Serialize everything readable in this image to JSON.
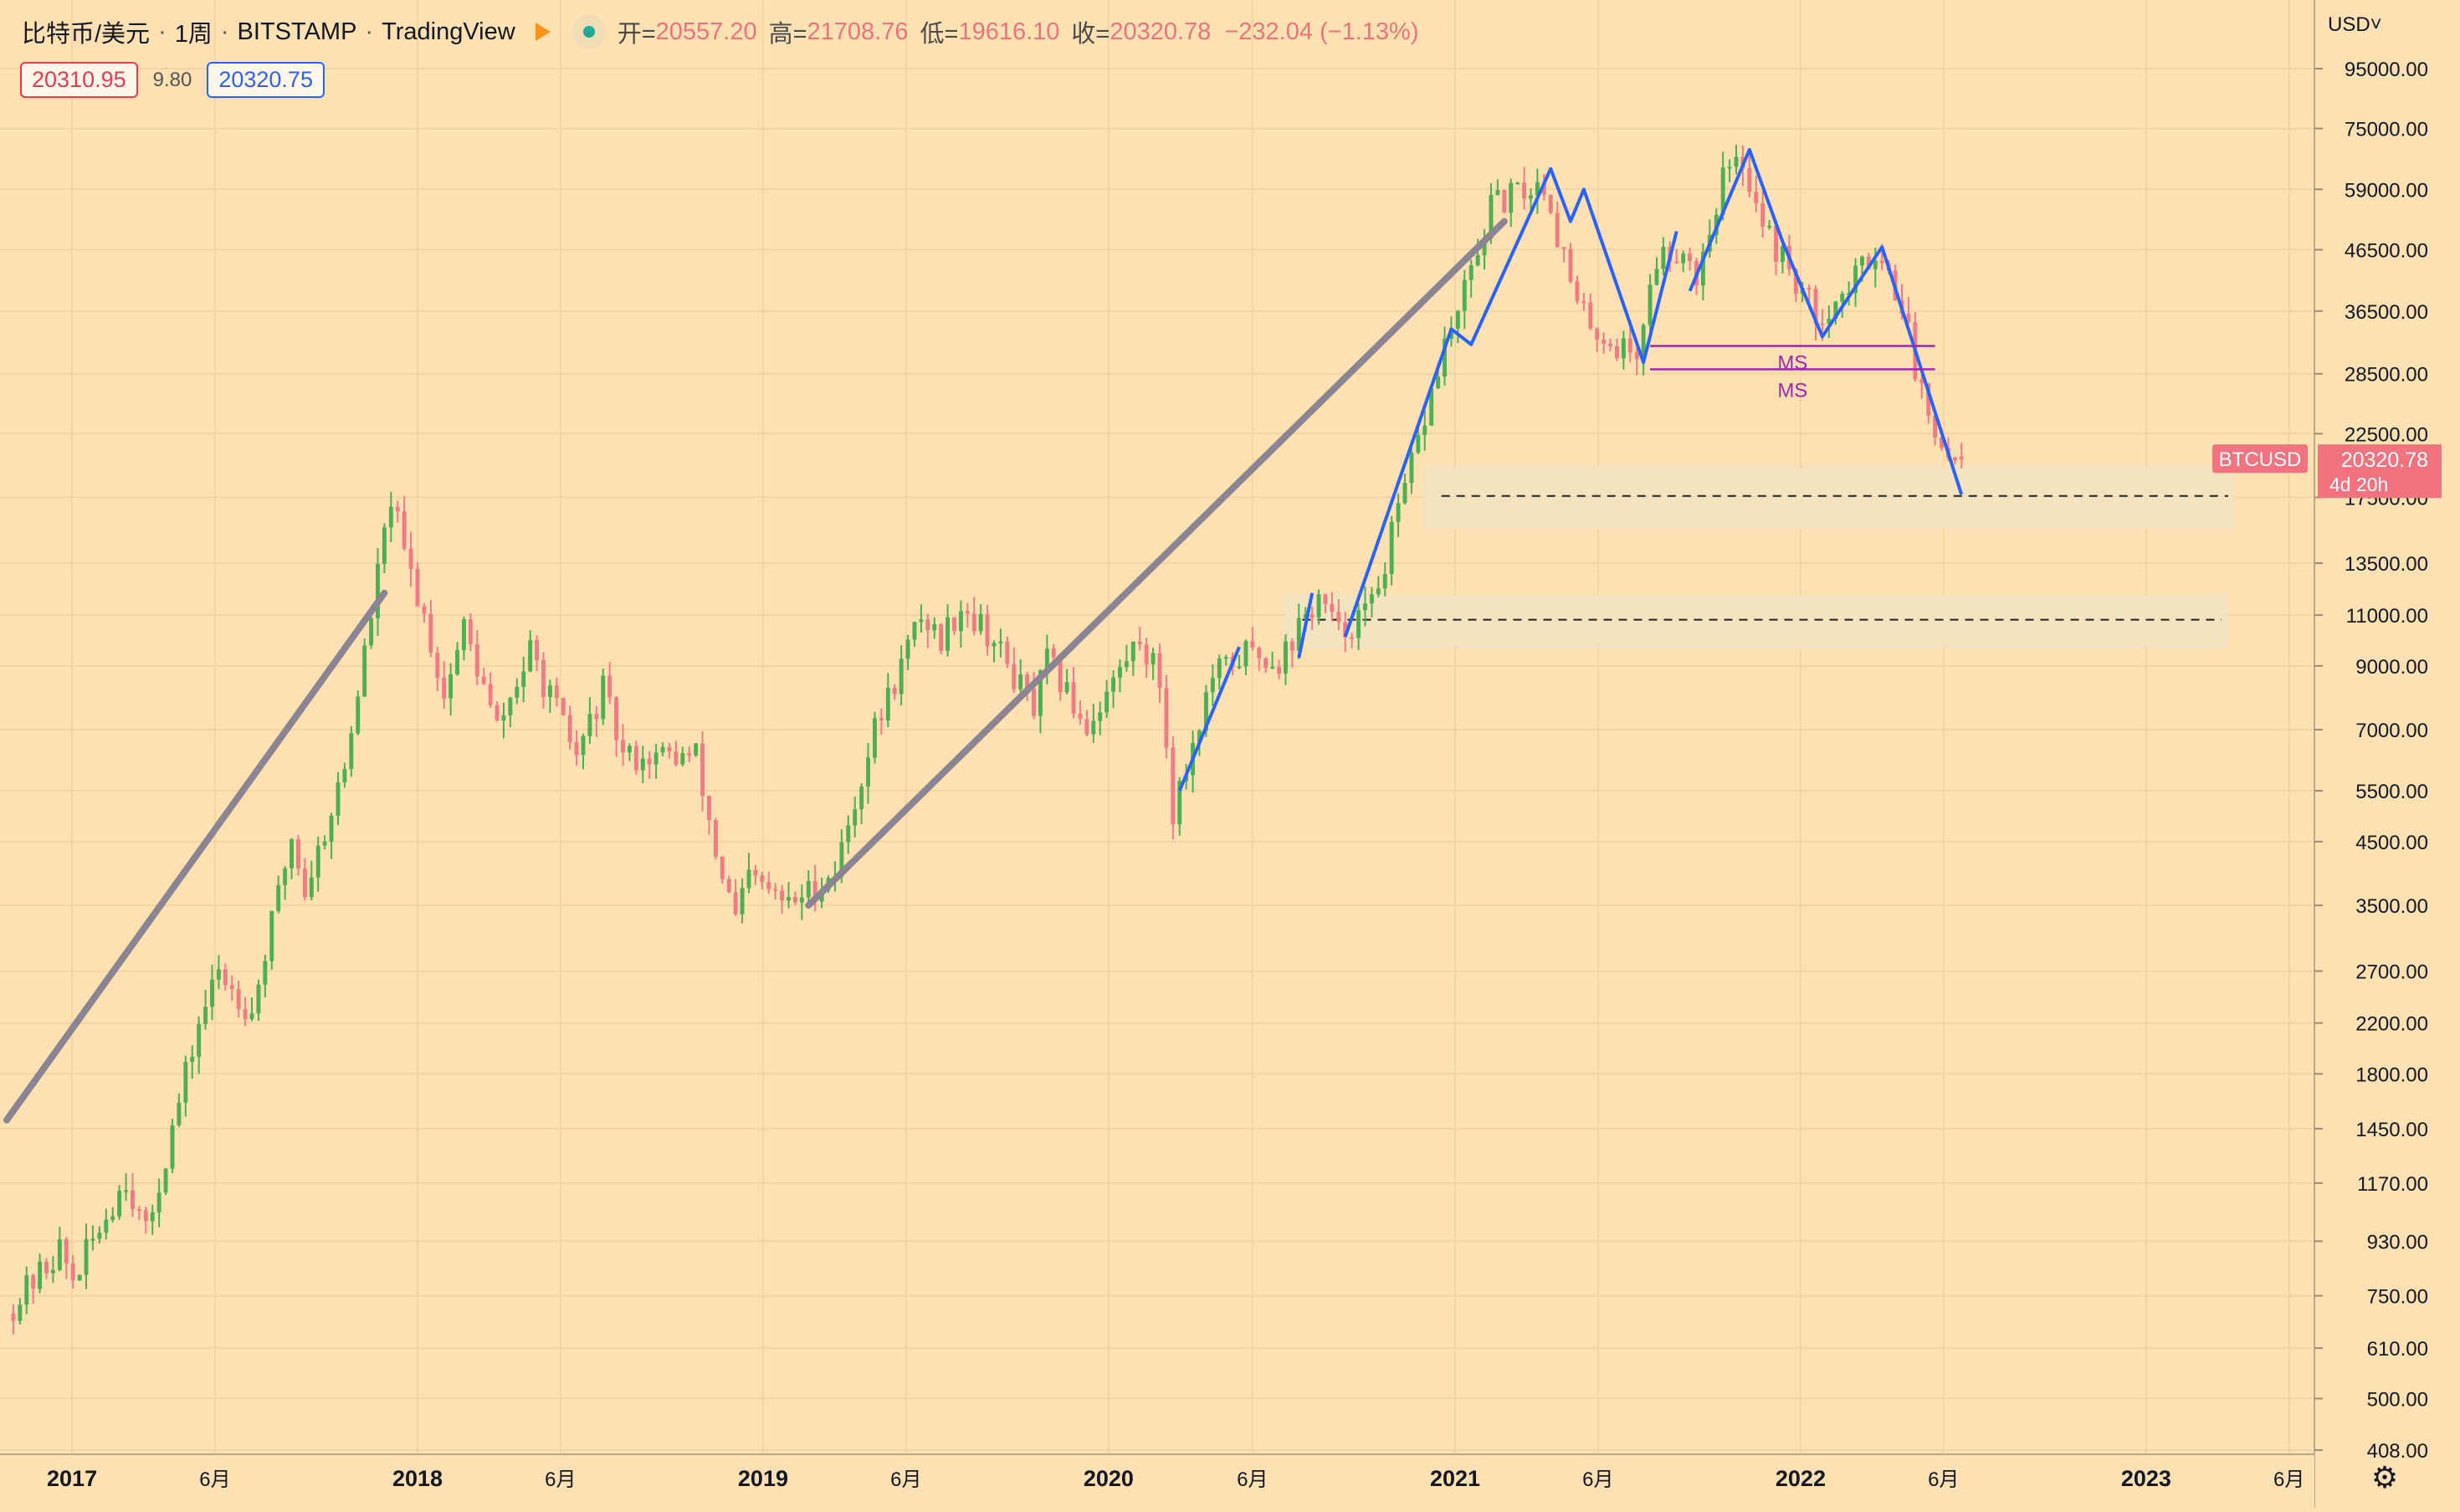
{
  "legend": {
    "symbol": "比特币/美元",
    "interval": "1周",
    "exchange": "BITSTAMP",
    "provider": "TradingView",
    "open_label": "开=",
    "open": "20557.20",
    "high_label": "高=",
    "high": "21708.76",
    "low_label": "低=",
    "low": "19616.10",
    "close_label": "收=",
    "close": "20320.78",
    "change": "−232.04 (−1.13%)",
    "flag_icon": "orange-flag-icon",
    "live_icon": "market-open-dot-icon"
  },
  "quote": {
    "sell": "20310.95",
    "spread": "9.80",
    "buy": "20320.75"
  },
  "axis": {
    "currency": "USD˅",
    "settings_icon": "gear-icon"
  },
  "price_tag": {
    "ticker": "BTCUSD",
    "price": "20320.78",
    "countdown": "4d 20h"
  },
  "colors": {
    "background": "#fde1b2",
    "up": "#4caf50",
    "down": "#ef7b84",
    "trendline": "#8a8493",
    "wave": "#2962ff",
    "ms": "#9c27b0",
    "zone": "#f2e4c0",
    "tag": "#f0737f"
  },
  "chart_data": {
    "type": "candlestick",
    "scale": "log",
    "timeframe": "weekly",
    "ylim": [
      408,
      120000
    ],
    "y_ticks": [
      95000,
      75000,
      59000,
      46500,
      36500,
      28500,
      22500,
      17500,
      13500,
      11000,
      9000,
      7000,
      5500,
      4500,
      3500,
      2700,
      2200,
      1800,
      1450,
      1170,
      930,
      750,
      610,
      500,
      408
    ],
    "y_tick_labels": [
      "95000.00",
      "75000.00",
      "59000.00",
      "46500.00",
      "36500.00",
      "28500.00",
      "22500.00",
      "17500.00",
      "13500.00",
      "11000.00",
      "9000.00",
      "7000.00",
      "5500.00",
      "4500.00",
      "3500.00",
      "2700.00",
      "2200.00",
      "1800.00",
      "1450.00",
      "1170.00",
      "930.00",
      "750.00",
      "610.00",
      "500.00",
      "408.00"
    ],
    "xlim": [
      "2016-10-24",
      "2023-06-26"
    ],
    "x_ticks": [
      {
        "date": "2017-01-01",
        "label": "2017",
        "bold": true
      },
      {
        "date": "2017-06-01",
        "label": "6月",
        "bold": false
      },
      {
        "date": "2018-01-01",
        "label": "2018",
        "bold": true
      },
      {
        "date": "2018-06-01",
        "label": "6月",
        "bold": false
      },
      {
        "date": "2019-01-01",
        "label": "2019",
        "bold": true
      },
      {
        "date": "2019-06-01",
        "label": "6月",
        "bold": false
      },
      {
        "date": "2020-01-01",
        "label": "2020",
        "bold": true
      },
      {
        "date": "2020-06-01",
        "label": "6月",
        "bold": false
      },
      {
        "date": "2021-01-01",
        "label": "2021",
        "bold": true
      },
      {
        "date": "2021-06-01",
        "label": "6月",
        "bold": false
      },
      {
        "date": "2022-01-01",
        "label": "2022",
        "bold": true
      },
      {
        "date": "2022-06-01",
        "label": "6月",
        "bold": false
      },
      {
        "date": "2023-01-01",
        "label": "2023",
        "bold": true
      },
      {
        "date": "2023-06-01",
        "label": "6月",
        "bold": false
      }
    ],
    "anchors": [
      [
        "2016-10-31",
        700
      ],
      [
        "2016-12-26",
        900
      ],
      [
        "2017-01-09",
        800
      ],
      [
        "2017-03-06",
        1200
      ],
      [
        "2017-03-27",
        950
      ],
      [
        "2017-05-22",
        2200
      ],
      [
        "2017-06-12",
        2700
      ],
      [
        "2017-07-17",
        2300
      ],
      [
        "2017-08-28",
        4600
      ],
      [
        "2017-09-11",
        3700
      ],
      [
        "2017-10-23",
        6000
      ],
      [
        "2017-12-11",
        17500
      ],
      [
        "2017-12-25",
        14000
      ],
      [
        "2018-01-15",
        11000
      ],
      [
        "2018-02-05",
        8000
      ],
      [
        "2018-02-26",
        10500
      ],
      [
        "2018-04-02",
        7000
      ],
      [
        "2018-05-07",
        9500
      ],
      [
        "2018-06-25",
        6300
      ],
      [
        "2018-07-23",
        8200
      ],
      [
        "2018-08-13",
        6300
      ],
      [
        "2018-10-29",
        6300
      ],
      [
        "2018-11-19",
        4300
      ],
      [
        "2018-12-10",
        3300
      ],
      [
        "2018-12-24",
        3900
      ],
      [
        "2019-02-04",
        3500
      ],
      [
        "2019-03-25",
        4000
      ],
      [
        "2019-05-06",
        7000
      ],
      [
        "2019-06-24",
        11000
      ],
      [
        "2019-07-15",
        10000
      ],
      [
        "2019-08-05",
        11500
      ],
      [
        "2019-09-02",
        10300
      ],
      [
        "2019-10-21",
        7600
      ],
      [
        "2019-11-04",
        9200
      ],
      [
        "2019-12-16",
        7100
      ],
      [
        "2020-02-10",
        10100
      ],
      [
        "2020-03-02",
        8500
      ],
      [
        "2020-03-16",
        5100
      ],
      [
        "2020-04-27",
        8600
      ],
      [
        "2020-06-01",
        9500
      ],
      [
        "2020-07-06",
        9200
      ],
      [
        "2020-08-17",
        11800
      ],
      [
        "2020-09-07",
        10200
      ],
      [
        "2020-10-12",
        11400
      ],
      [
        "2020-11-16",
        18000
      ],
      [
        "2020-12-28",
        32000
      ],
      [
        "2021-01-11",
        36000
      ],
      [
        "2021-02-15",
        55000
      ],
      [
        "2021-03-15",
        58000
      ],
      [
        "2021-04-12",
        60500
      ],
      [
        "2021-05-17",
        37000
      ],
      [
        "2021-06-21",
        32000
      ],
      [
        "2021-07-19",
        31000
      ],
      [
        "2021-08-09",
        45000
      ],
      [
        "2021-09-06",
        47000
      ],
      [
        "2021-09-20",
        42000
      ],
      [
        "2021-10-18",
        62000
      ],
      [
        "2021-11-08",
        66000
      ],
      [
        "2021-12-06",
        49000
      ],
      [
        "2022-01-24",
        36000
      ],
      [
        "2022-02-21",
        38500
      ],
      [
        "2022-03-28",
        47000
      ],
      [
        "2022-04-25",
        38000
      ],
      [
        "2022-05-09",
        29000
      ],
      [
        "2022-06-13",
        20500
      ],
      [
        "2022-06-20",
        20320
      ]
    ],
    "last_candle": {
      "date": "2022-06-20",
      "open": 20557.2,
      "high": 21708.76,
      "low": 19616.1,
      "close": 20320.78
    },
    "current_price": 20320.78,
    "annotations": {
      "trendlines": [
        {
          "from": [
            "2016-10-24",
            1500
          ],
          "to": [
            "2017-11-27",
            12000
          ]
        },
        {
          "from": [
            "2019-02-18",
            3500
          ],
          "to": [
            "2021-02-22",
            52000
          ]
        }
      ],
      "wave_paths": [
        [
          [
            "2020-03-16",
            5500
          ],
          [
            "2020-05-18",
            9700
          ]
        ],
        [
          [
            "2020-07-20",
            9300
          ],
          [
            "2020-08-03",
            12000
          ]
        ],
        [
          [
            "2020-09-07",
            10100
          ],
          [
            "2020-12-28",
            34000
          ],
          [
            "2021-01-18",
            32000
          ],
          [
            "2021-04-12",
            64000
          ],
          [
            "2021-05-03",
            52000
          ],
          [
            "2021-05-17",
            59000
          ],
          [
            "2021-07-19",
            29800
          ],
          [
            "2021-08-23",
            50000
          ]
        ],
        [
          [
            "2021-09-06",
            39500
          ],
          [
            "2021-11-08",
            69000
          ],
          [
            "2021-12-13",
            48000
          ],
          [
            "2022-01-24",
            33000
          ],
          [
            "2022-03-28",
            47000
          ],
          [
            "2022-06-20",
            17700
          ]
        ]
      ],
      "ms_levels": [
        {
          "label": "MS",
          "price": 31800,
          "from": "2021-07-26",
          "to": "2022-05-23"
        },
        {
          "label": "MS",
          "price": 29000,
          "from": "2021-07-26",
          "to": "2022-05-23"
        }
      ],
      "zones": [
        {
          "from": "2020-11-30",
          "to": "2023-04-03",
          "top": 19700,
          "bottom": 15500,
          "midline": 17600
        },
        {
          "from": "2020-07-06",
          "to": "2023-03-27",
          "top": 11900,
          "bottom": 9700,
          "midline": 10800
        }
      ]
    }
  }
}
